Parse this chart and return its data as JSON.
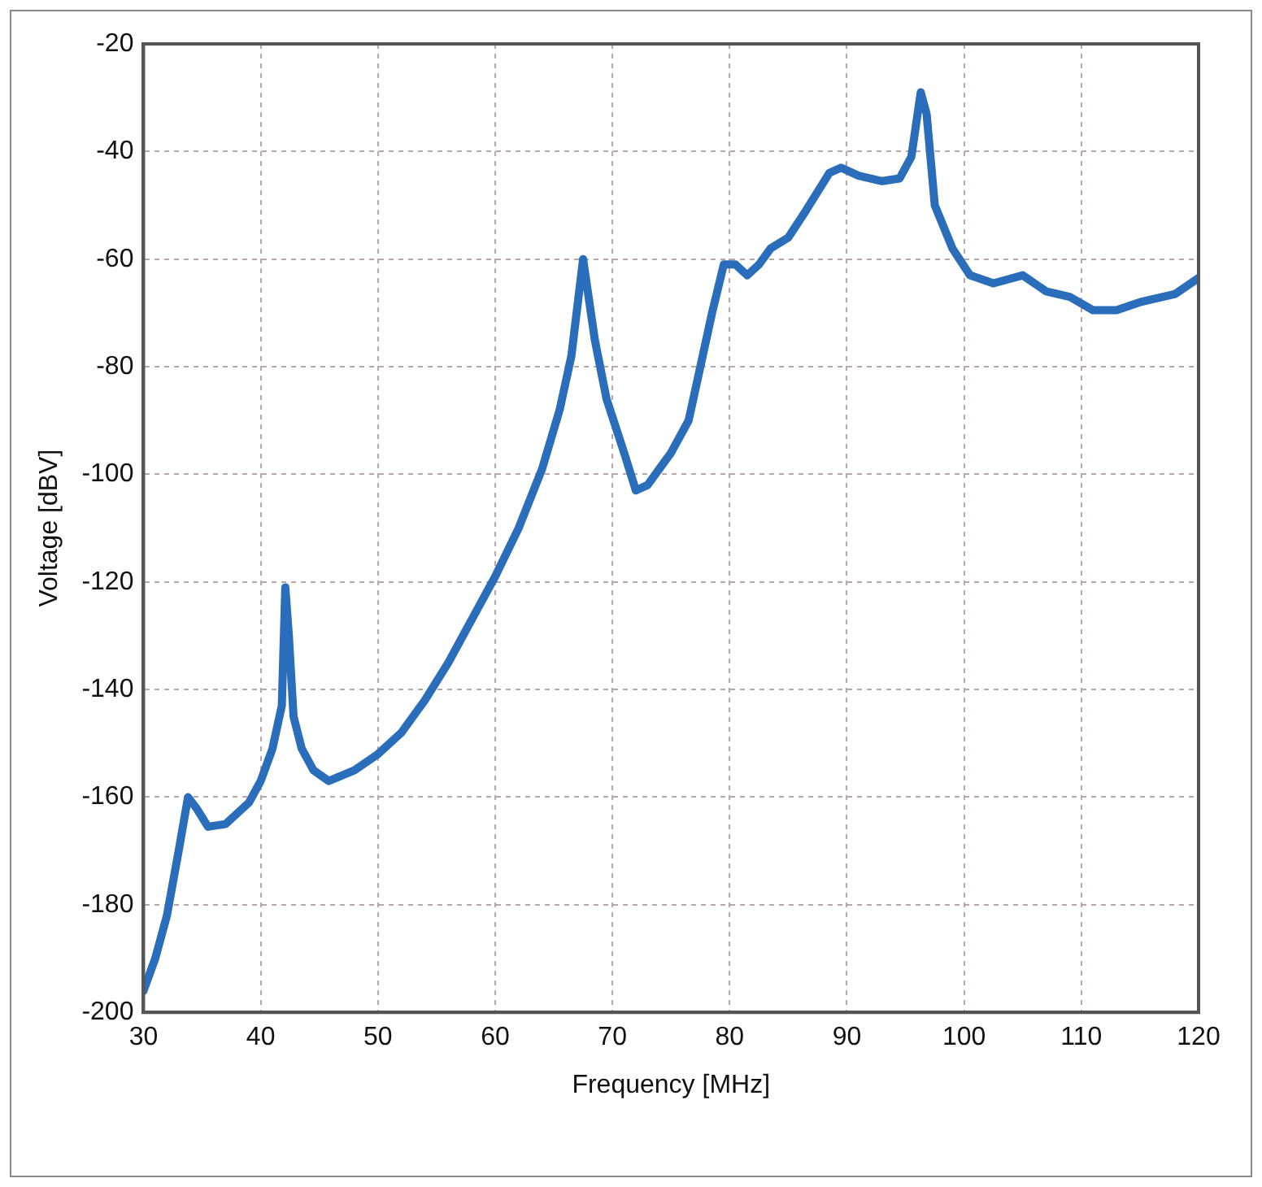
{
  "chart_data": {
    "type": "line",
    "xlabel": "Frequency [MHz]",
    "ylabel": "Voltage [dBV]",
    "x": [
      30,
      31,
      32,
      33,
      33.8,
      34.5,
      35.5,
      37,
      38,
      39,
      40,
      41,
      41.8,
      42.1,
      42.4,
      42.8,
      43.5,
      44.5,
      45.8,
      48,
      50,
      52,
      54,
      56,
      58,
      60,
      62,
      64,
      65.5,
      66.5,
      67.5,
      68.5,
      69.5,
      71,
      72,
      73,
      74,
      75,
      76.5,
      77.5,
      78.5,
      79.5,
      80.5,
      81.5,
      82.5,
      83.5,
      85,
      86.5,
      88.5,
      89.5,
      91,
      93,
      94.5,
      95.5,
      96.3,
      96.8,
      97.5,
      99,
      100.5,
      102.5,
      105,
      107,
      109,
      111,
      113,
      115,
      118,
      120
    ],
    "series": [
      {
        "color": "#2a6ebb",
        "values": [
          -196,
          -190,
          -182,
          -170,
          -160,
          -162,
          -165.5,
          -165,
          -163,
          -161,
          -157,
          -151,
          -143,
          -121,
          -130,
          -145,
          -151,
          -155,
          -157,
          -155,
          -152,
          -148,
          -142,
          -135,
          -127,
          -119,
          -110,
          -99,
          -88,
          -78,
          -60,
          -75,
          -86,
          -96,
          -103,
          -102,
          -99,
          -96,
          -90,
          -80,
          -70,
          -61,
          -61,
          -63,
          -61,
          -58,
          -56,
          -51,
          -44,
          -43,
          -44.5,
          -45.5,
          -45,
          -41,
          -29,
          -33,
          -50,
          -58,
          -63,
          -64.5,
          -63,
          -66,
          -67,
          -69.5,
          -69.5,
          -68,
          -66.5,
          -63.5
        ]
      }
    ],
    "xlim": [
      30,
      120
    ],
    "xticks": [
      30,
      40,
      50,
      60,
      70,
      80,
      90,
      100,
      110,
      120
    ],
    "ylim": [
      -200,
      -20
    ],
    "yticks": [
      -200,
      -180,
      -160,
      -140,
      -120,
      -100,
      -80,
      -60,
      -40,
      -20
    ],
    "grid": true,
    "legend": false,
    "marker": "none",
    "line_style": "solid"
  }
}
